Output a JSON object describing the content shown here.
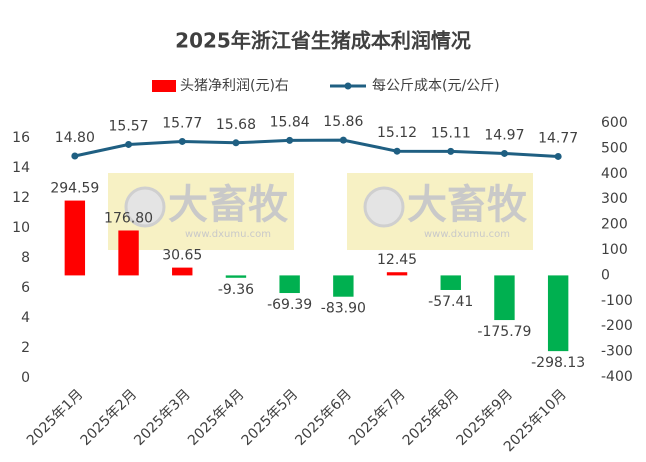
{
  "chart_data": {
    "type": "bar-line",
    "title": "2025年浙江省生猪成本利润情况",
    "categories": [
      "2025年1月",
      "2025年2月",
      "2025年3月",
      "2025年4月",
      "2025年5月",
      "2025年6月",
      "2025年7月",
      "2025年8月",
      "2025年9月",
      "2025年10月"
    ],
    "series": [
      {
        "name": "头猪净利润(元)右",
        "type": "bar",
        "axis": "y2",
        "color": "#ff0000",
        "negative_color": "#00b050",
        "values": [
          294.59,
          176.8,
          30.65,
          -9.36,
          -69.39,
          -83.9,
          12.45,
          -57.41,
          -175.79,
          -298.13
        ],
        "value_labels": [
          "294.59",
          "176.80",
          "30.65",
          "-9.36",
          "-69.39",
          "-83.90",
          "12.45",
          "-57.41",
          "-175.79",
          "-298.13"
        ]
      },
      {
        "name": "每公斤成本(元/公斤)",
        "type": "line",
        "axis": "y",
        "color": "#1f5f82",
        "values": [
          14.8,
          15.57,
          15.77,
          15.68,
          15.84,
          15.86,
          15.12,
          15.11,
          14.97,
          14.77
        ],
        "value_labels": [
          "14.80",
          "15.57",
          "15.77",
          "15.68",
          "15.84",
          "15.86",
          "15.12",
          "15.11",
          "14.97",
          "14.77"
        ]
      }
    ],
    "ylim": [
      0,
      16
    ],
    "yticks": [
      0,
      2,
      4,
      6,
      8,
      10,
      12,
      14,
      16
    ],
    "y2lim": [
      -400,
      600
    ],
    "y2ticks": [
      -400,
      -300,
      -200,
      -100,
      0,
      100,
      200,
      300,
      400,
      500,
      600
    ],
    "legend": "top",
    "watermark": {
      "text": "大畜牧",
      "url": "www.dxumu.com"
    }
  }
}
